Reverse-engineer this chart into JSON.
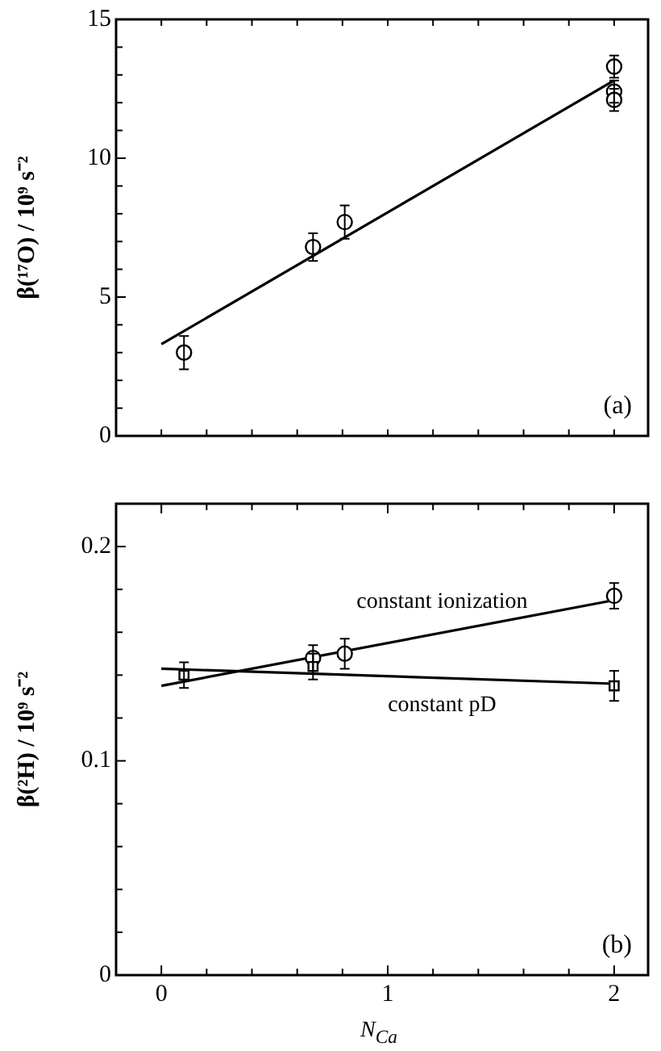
{
  "chart_data": [
    {
      "type": "scatter",
      "ylabel": "β(¹⁷O) / 10⁹ s⁻²",
      "xlim": [
        -0.2,
        2.15
      ],
      "xticks": [
        {
          "value": 0,
          "label": null
        },
        {
          "value": 0.2,
          "label": null
        },
        {
          "value": 0.4,
          "label": null
        },
        {
          "value": 0.6,
          "label": null
        },
        {
          "value": 0.8,
          "label": null
        },
        {
          "value": 1,
          "label": null
        },
        {
          "value": 1.2,
          "label": null
        },
        {
          "value": 1.4,
          "label": null
        },
        {
          "value": 1.6,
          "label": null
        },
        {
          "value": 1.8,
          "label": null
        },
        {
          "value": 2,
          "label": null
        }
      ],
      "ylim": [
        0,
        15
      ],
      "yticks": [
        0,
        {
          "value": 1,
          "label": null
        },
        {
          "value": 2,
          "label": null
        },
        {
          "value": 3,
          "label": null
        },
        {
          "value": 4,
          "label": null
        },
        5,
        {
          "value": 6,
          "label": null
        },
        {
          "value": 7,
          "label": null
        },
        {
          "value": 8,
          "label": null
        },
        {
          "value": 9,
          "label": null
        },
        10,
        {
          "value": 11,
          "label": null
        },
        {
          "value": 12,
          "label": null
        },
        {
          "value": 13,
          "label": null
        },
        {
          "value": 14,
          "label": null
        },
        15
      ],
      "tick_labels": "y",
      "grid": false,
      "legend": false,
      "series": [
        {
          "type": "scatter",
          "marker": "circle",
          "color": "#000000",
          "x": [
            0.1,
            0.67,
            0.81,
            2,
            2,
            2
          ],
          "values": [
            3.0,
            6.8,
            7.7,
            13.3,
            12.4,
            12.1
          ],
          "errors": [
            0.6,
            0.5,
            0.6,
            0.4,
            0.4,
            0.4
          ]
        },
        {
          "type": "line",
          "marker": "none",
          "color": "#000000",
          "x": [
            0,
            2
          ],
          "values": [
            3.3,
            12.8
          ]
        }
      ],
      "annotations": [
        "(a)"
      ]
    },
    {
      "type": "scatter",
      "ylabel": "β(²H) / 10⁹ s⁻²",
      "xlabel": "N$_{Ca}$",
      "xlim": [
        -0.2,
        2.15
      ],
      "xticks": [
        0,
        {
          "value": 0.2,
          "label": null
        },
        {
          "value": 0.4,
          "label": null
        },
        {
          "value": 0.6,
          "label": null
        },
        {
          "value": 0.8,
          "label": null
        },
        1,
        {
          "value": 1.2,
          "label": null
        },
        {
          "value": 1.4,
          "label": null
        },
        {
          "value": 1.6,
          "label": null
        },
        {
          "value": 1.8,
          "label": null
        },
        2
      ],
      "ylim": [
        0,
        0.22
      ],
      "yticks": [
        0,
        {
          "value": 0.02,
          "label": null
        },
        {
          "value": 0.04,
          "label": null
        },
        {
          "value": 0.06,
          "label": null
        },
        {
          "value": 0.08,
          "label": null
        },
        0.1,
        {
          "value": 0.12,
          "label": null
        },
        {
          "value": 0.14,
          "label": null
        },
        {
          "value": 0.16,
          "label": null
        },
        {
          "value": 0.18,
          "label": null
        },
        0.2
      ],
      "grid": false,
      "legend": false,
      "series": [
        {
          "type": "scatter",
          "marker": "circle",
          "color": "#000000",
          "x": [
            0.67,
            0.81,
            2
          ],
          "values": [
            0.148,
            0.15,
            0.177
          ],
          "errors": [
            0.006,
            0.007,
            0.006
          ]
        },
        {
          "type": "scatter",
          "marker": "square",
          "color": "#000000",
          "x": [
            0.1,
            0.67,
            2
          ],
          "values": [
            0.14,
            0.144,
            0.135
          ],
          "errors": [
            0.006,
            0.006,
            0.007
          ]
        },
        {
          "type": "line",
          "marker": "none",
          "name": "constant ionization",
          "color": "#000000",
          "x": [
            0,
            2
          ],
          "values": [
            0.135,
            0.175
          ]
        },
        {
          "type": "line",
          "marker": "none",
          "name": "constant pD",
          "color": "#000000",
          "x": [
            0,
            2
          ],
          "values": [
            0.143,
            0.136
          ]
        }
      ],
      "annotations": [
        "(b)"
      ]
    }
  ]
}
